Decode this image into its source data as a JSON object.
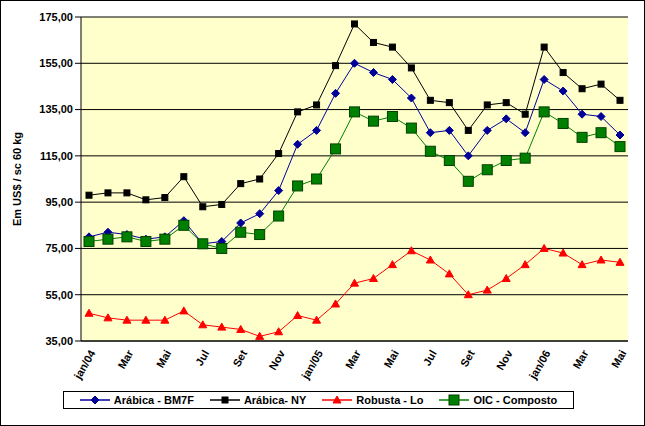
{
  "chart_data": {
    "type": "line",
    "y_label": "Em US$ / sc 60 kg",
    "categories": [
      "jan/04",
      null,
      "Mar",
      null,
      "Mai",
      null,
      "Jul",
      null,
      "Set",
      null,
      "Nov",
      null,
      "jan/05",
      null,
      "Mar",
      null,
      "Mai",
      null,
      "Jul",
      null,
      "Set",
      null,
      "Nov",
      null,
      "jan/06",
      null,
      "Mar",
      null,
      "Mai"
    ],
    "ylim": [
      35,
      175
    ],
    "yticks": [
      {
        "value": 35,
        "label": "35,00"
      },
      {
        "value": 55,
        "label": "55,00"
      },
      {
        "value": 75,
        "label": "75,00"
      },
      {
        "value": 95,
        "label": "95,00"
      },
      {
        "value": 115,
        "label": "115,00"
      },
      {
        "value": 135,
        "label": "135,00"
      },
      {
        "value": 155,
        "label": "155,00"
      },
      {
        "value": 175,
        "label": "175,00"
      }
    ],
    "grid": true,
    "legend": "bottom",
    "series": [
      {
        "name": "Arábica - BM7F",
        "color": "#000099",
        "marker": "diamond",
        "values": [
          80,
          82,
          81,
          79,
          80,
          87,
          77,
          78,
          86,
          90,
          100,
          120,
          126,
          142,
          155,
          151,
          148,
          140,
          125,
          126,
          115,
          126,
          131,
          125,
          148,
          143,
          133,
          132,
          124
        ]
      },
      {
        "name": "Arábica- NY",
        "color": "#000000",
        "marker": "square",
        "values": [
          98,
          99,
          99,
          96,
          97,
          106,
          93,
          94,
          103,
          105,
          116,
          134,
          137,
          154,
          172,
          164,
          162,
          153,
          139,
          138,
          126,
          137,
          138,
          133,
          162,
          151,
          144,
          146,
          139
        ]
      },
      {
        "name": "Robusta - Lo",
        "color": "#FF0000",
        "marker": "triangle",
        "values": [
          47,
          45,
          44,
          44,
          44,
          48,
          42,
          41,
          40,
          37,
          39,
          46,
          44,
          51,
          60,
          62,
          68,
          74,
          70,
          64,
          55,
          57,
          62,
          68,
          75,
          73,
          68,
          70,
          69
        ]
      },
      {
        "name": "OIC - Composto",
        "color": "#008000",
        "marker": "bigsquare",
        "values": [
          78,
          79,
          80,
          78,
          79,
          85,
          77,
          75,
          82,
          81,
          89,
          102,
          105,
          118,
          134,
          130,
          132,
          127,
          117,
          113,
          104,
          109,
          113,
          114,
          134,
          129,
          123,
          125,
          119
        ]
      }
    ]
  }
}
